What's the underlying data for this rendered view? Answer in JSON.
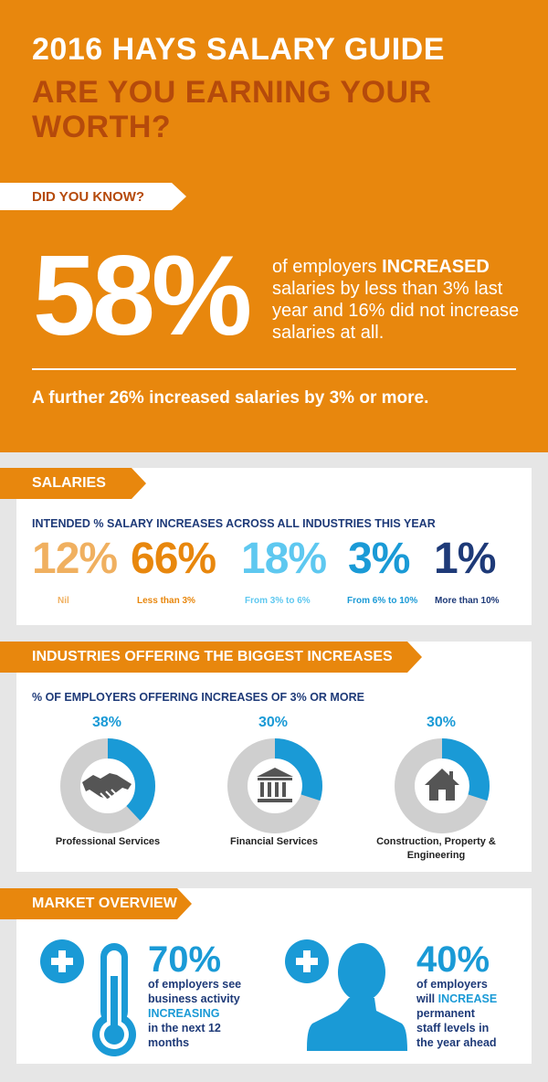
{
  "header": {
    "title_line1": "2016 HAYS SALARY GUIDE",
    "title_line2": "ARE YOU EARNING YOUR WORTH?"
  },
  "did_you_know": {
    "label": "DID YOU KNOW?",
    "big_stat": "58%",
    "desc_before": "of employers ",
    "desc_emph": "INCREASED",
    "desc_after": " salaries by less than 3% last year and 16% did not increase salaries at all.",
    "further": "A further 26% increased salaries by 3% or more."
  },
  "salaries": {
    "label": "SALARIES",
    "subtitle": "INTENDED % SALARY INCREASES ACROSS ALL INDUSTRIES THIS YEAR",
    "items": [
      {
        "value": "12%",
        "label": "Nil",
        "color": "#f0b060"
      },
      {
        "value": "66%",
        "label": "Less than 3%",
        "color": "#e8870d"
      },
      {
        "value": "18%",
        "label": "From 3% to 6%",
        "color": "#5ec8f0"
      },
      {
        "value": "3%",
        "label": "From 6% to 10%",
        "color": "#1a9ad6"
      },
      {
        "value": "1%",
        "label": "More than 10%",
        "color": "#1e3a78"
      }
    ]
  },
  "industries": {
    "label": "INDUSTRIES OFFERING THE BIGGEST INCREASES",
    "subtitle": "% OF EMPLOYERS OFFERING INCREASES OF 3% OR MORE",
    "items": [
      {
        "value": "38%",
        "fraction": 0.38,
        "label": "Professional Services",
        "icon": "handshake-icon"
      },
      {
        "value": "30%",
        "fraction": 0.3,
        "label": "Financial Services",
        "icon": "bank-icon"
      },
      {
        "value": "30%",
        "fraction": 0.3,
        "label": "Construction, Property & Engineering",
        "icon": "house-icon"
      }
    ]
  },
  "market": {
    "label": "MARKET OVERVIEW",
    "item1": {
      "value": "70%",
      "line1": "of employers see",
      "line2": "business activity",
      "emph": "INCREASING",
      "line4": "in the next 12",
      "line5": "months",
      "icon": "thermometer-icon"
    },
    "item2": {
      "value": "40%",
      "line1": "of employers",
      "pre": "will ",
      "emph": "INCREASE",
      "line3": "permanent",
      "line4": "staff levels in",
      "line5": "the year ahead",
      "icon": "person-icon"
    }
  },
  "colors": {
    "orange": "#e8870d",
    "dark_orange": "#b54a0b",
    "blue": "#1a9ad6",
    "navy": "#1e3a78",
    "grey": "#cfcfcf"
  }
}
